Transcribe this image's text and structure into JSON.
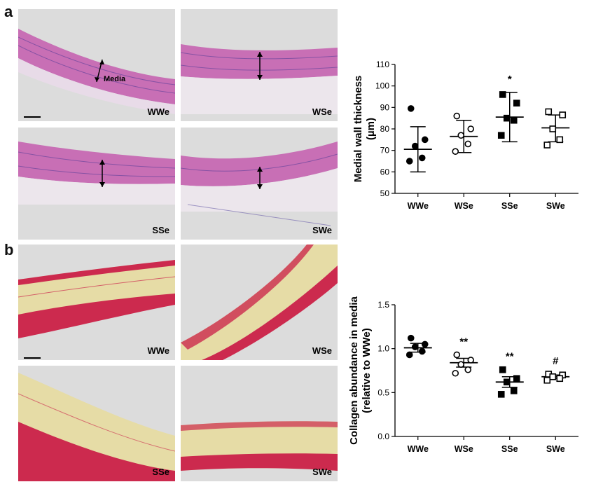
{
  "panels": [
    {
      "letter": "a",
      "stain": "he",
      "images": [
        {
          "label": "WWe",
          "annotation": "Media",
          "scale_bar": true
        },
        {
          "label": "WSe"
        },
        {
          "label": "SSe"
        },
        {
          "label": "SWe"
        }
      ]
    },
    {
      "letter": "b",
      "stain": "collagen",
      "images": [
        {
          "label": "WWe",
          "scale_bar": true
        },
        {
          "label": "WSe"
        },
        {
          "label": "SSe"
        },
        {
          "label": "SWe"
        }
      ]
    }
  ],
  "colors": {
    "he_background": "#dcdcdc",
    "he_tissue": "#c86fb5",
    "he_nuclei": "#5a3f9a",
    "collagen_background": "#dcdcdc",
    "collagen_red": "#cc2a4e",
    "collagen_yellow": "#e6dca6"
  },
  "chart_data": [
    {
      "type": "scatter",
      "ylabel": "Medial wall thickness\n(µm)",
      "categories": [
        "WWe",
        "WSe",
        "SSe",
        "SWe"
      ],
      "ylim": [
        50,
        110
      ],
      "yticks": [
        50,
        60,
        70,
        80,
        90,
        100,
        110
      ],
      "markers": [
        "filled-circle",
        "open-circle",
        "filled-square",
        "open-square"
      ],
      "points": [
        [
          89.5,
          75,
          72,
          66.5,
          65
        ],
        [
          86,
          80,
          77,
          73,
          69.5
        ],
        [
          96,
          92,
          85,
          84,
          77
        ],
        [
          88,
          86.5,
          80,
          75,
          72.5
        ]
      ],
      "mean": [
        70.5,
        76.5,
        85.5,
        80.5
      ],
      "sd_upper": [
        81,
        84,
        97,
        86.5
      ],
      "sd_lower": [
        60,
        69,
        74,
        74
      ],
      "significance": [
        "",
        "",
        "*",
        ""
      ]
    },
    {
      "type": "scatter",
      "ylabel": "Collagen abundance in media\n(relative to WWe)",
      "categories": [
        "WWe",
        "WSe",
        "SSe",
        "SWe"
      ],
      "ylim": [
        0.0,
        1.5
      ],
      "yticks": [
        0.0,
        0.5,
        1.0,
        1.5
      ],
      "ytick_labels": [
        "0.0",
        "0.5",
        "1.0",
        "1.5"
      ],
      "markers": [
        "filled-circle",
        "open-circle",
        "filled-square",
        "open-square"
      ],
      "points": [
        [
          1.12,
          1.05,
          1.02,
          0.97,
          0.93
        ],
        [
          0.93,
          0.87,
          0.82,
          0.76,
          0.72
        ],
        [
          0.76,
          0.66,
          0.62,
          0.52,
          0.48
        ],
        [
          0.71,
          0.7,
          0.68,
          0.66,
          0.64
        ]
      ],
      "mean": [
        1.01,
        0.84,
        0.62,
        0.68
      ],
      "sd_upper": [
        1.06,
        0.89,
        0.68,
        0.7
      ],
      "sd_lower": [
        0.96,
        0.79,
        0.56,
        0.66
      ],
      "significance": [
        "",
        "**",
        "**",
        "#"
      ]
    }
  ]
}
